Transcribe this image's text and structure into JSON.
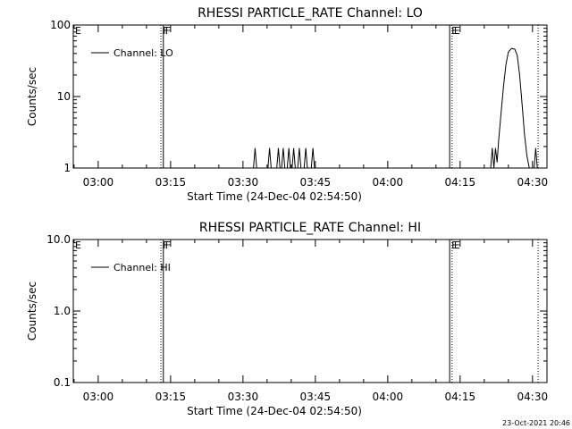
{
  "footer": {
    "timestamp": "23-Oct-2021 20:46"
  },
  "chart_data": [
    {
      "type": "line",
      "title": "RHESSI PARTICLE_RATE Channel: LO",
      "xlabel": "Start Time (24-Dec-04 02:54:50)",
      "ylabel": "Counts/sec",
      "yscale": "log",
      "ylim": [
        1,
        100
      ],
      "xlim": [
        "02:54:50",
        "04:33:00"
      ],
      "x_ticks": [
        "03:00",
        "03:15",
        "03:30",
        "03:45",
        "04:00",
        "04:15",
        "04:30"
      ],
      "y_ticks": [
        "1",
        "10",
        "100"
      ],
      "grid": false,
      "legend": {
        "position": "top-left",
        "entries": [
          "Channel: LO"
        ]
      },
      "markers": [
        {
          "label": "E",
          "time": "02:54:50",
          "style": "solid"
        },
        {
          "label": "F",
          "time": "03:13:00",
          "style": "dotted"
        },
        {
          "label": "F",
          "time": "03:13:30",
          "style": "solid"
        },
        {
          "label": "E",
          "time": "04:12:50",
          "style": "solid"
        },
        {
          "label": "E",
          "time": "04:13:20",
          "style": "dotted"
        },
        {
          "label": "",
          "time": "04:31:10",
          "style": "dotted"
        }
      ],
      "series": [
        {
          "name": "Channel: LO",
          "values": [
            [
              "03:32:10",
              1
            ],
            [
              "03:32:30",
              1.9
            ],
            [
              "03:32:50",
              1
            ],
            [
              "03:35:10",
              1
            ],
            [
              "03:35:30",
              1.9
            ],
            [
              "03:35:50",
              1
            ],
            [
              "03:37:00",
              1
            ],
            [
              "03:37:20",
              1.9
            ],
            [
              "03:37:40",
              1
            ],
            [
              "03:38:00",
              1
            ],
            [
              "03:38:20",
              1.9
            ],
            [
              "03:38:40",
              1
            ],
            [
              "03:39:10",
              1
            ],
            [
              "03:39:30",
              1.9
            ],
            [
              "03:39:50",
              1
            ],
            [
              "03:40:10",
              1
            ],
            [
              "03:40:30",
              1.9
            ],
            [
              "03:40:50",
              1
            ],
            [
              "03:41:20",
              1
            ],
            [
              "03:41:40",
              1.9
            ],
            [
              "03:42:00",
              1
            ],
            [
              "03:42:40",
              1
            ],
            [
              "03:43:00",
              1.9
            ],
            [
              "03:43:20",
              1
            ],
            [
              "03:44:10",
              1
            ],
            [
              "03:44:30",
              1.9
            ],
            [
              "03:44:50",
              1
            ]
          ]
        },
        {
          "name": "Channel: LO",
          "values": [
            [
              "04:21:20",
              1
            ],
            [
              "04:21:40",
              1.9
            ],
            [
              "04:22:00",
              1.0
            ],
            [
              "04:22:20",
              1.9
            ],
            [
              "04:22:40",
              1.2
            ],
            [
              "04:23:00",
              2.5
            ],
            [
              "04:23:30",
              6
            ],
            [
              "04:24:00",
              14
            ],
            [
              "04:24:30",
              28
            ],
            [
              "04:25:00",
              42
            ],
            [
              "04:25:40",
              47
            ],
            [
              "04:26:20",
              46
            ],
            [
              "04:26:50",
              38
            ],
            [
              "04:27:20",
              20
            ],
            [
              "04:27:50",
              8
            ],
            [
              "04:28:20",
              3
            ],
            [
              "04:28:50",
              1.5
            ],
            [
              "04:29:20",
              1
            ]
          ]
        },
        {
          "name": "Channel: LO",
          "values": [
            [
              "04:30:20",
              1
            ],
            [
              "04:30:40",
              1.9
            ],
            [
              "04:31:00",
              1
            ]
          ]
        }
      ]
    },
    {
      "type": "line",
      "title": "RHESSI PARTICLE_RATE Channel: HI",
      "xlabel": "Start Time (24-Dec-04 02:54:50)",
      "ylabel": "Counts/sec",
      "yscale": "log",
      "ylim": [
        0.1,
        10
      ],
      "xlim": [
        "02:54:50",
        "04:33:00"
      ],
      "x_ticks": [
        "03:00",
        "03:15",
        "03:30",
        "03:45",
        "04:00",
        "04:15",
        "04:30"
      ],
      "y_ticks": [
        "0.1",
        "1.0",
        "10.0"
      ],
      "grid": false,
      "legend": {
        "position": "top-left",
        "entries": [
          "Channel: HI"
        ]
      },
      "markers": [
        {
          "label": "E",
          "time": "02:54:50",
          "style": "solid"
        },
        {
          "label": "F",
          "time": "03:13:00",
          "style": "dotted"
        },
        {
          "label": "F",
          "time": "03:13:30",
          "style": "solid"
        },
        {
          "label": "E",
          "time": "04:12:50",
          "style": "solid"
        },
        {
          "label": "E",
          "time": "04:13:20",
          "style": "dotted"
        },
        {
          "label": "",
          "time": "04:31:10",
          "style": "dotted"
        }
      ],
      "series": []
    }
  ]
}
